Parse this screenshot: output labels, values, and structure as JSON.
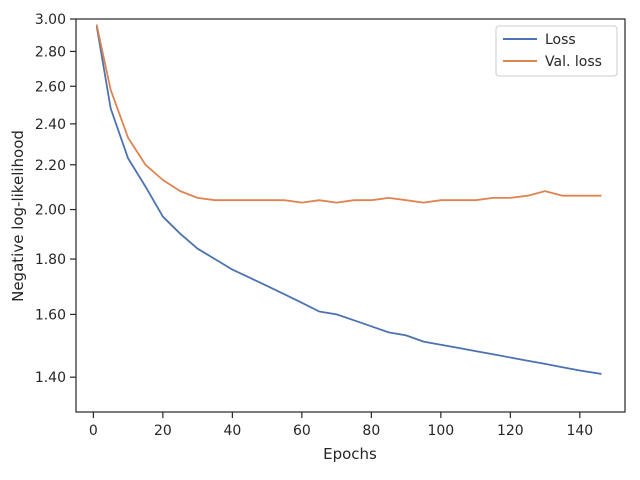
{
  "chart_data": {
    "type": "line",
    "title": "",
    "xlabel": "Epochs",
    "ylabel": "Negative log-likelihood",
    "y_scale": "log",
    "xlim": [
      -5,
      153
    ],
    "ylim": [
      1.3,
      3.0
    ],
    "grid": false,
    "legend_position": "top-right",
    "x_ticks": [
      0,
      20,
      40,
      60,
      80,
      100,
      120,
      140
    ],
    "y_ticks": [
      1.4,
      1.6,
      1.8,
      2.0,
      2.2,
      2.4,
      2.6,
      2.8,
      3.0
    ],
    "x_tick_labels": [
      "0",
      "20",
      "40",
      "60",
      "80",
      "100",
      "120",
      "140"
    ],
    "y_tick_labels": [
      "1.40",
      "1.60",
      "1.80",
      "2.00",
      "2.20",
      "2.40",
      "2.60",
      "2.80",
      "3.00"
    ],
    "x": [
      1,
      5,
      10,
      15,
      20,
      25,
      30,
      35,
      40,
      45,
      50,
      55,
      60,
      65,
      70,
      75,
      80,
      85,
      90,
      95,
      100,
      105,
      110,
      115,
      120,
      125,
      130,
      135,
      140,
      146
    ],
    "series": [
      {
        "name": "Loss",
        "color": "#4c72b0",
        "values": [
          2.95,
          2.48,
          2.23,
          2.1,
          1.97,
          1.9,
          1.84,
          1.8,
          1.76,
          1.73,
          1.7,
          1.67,
          1.64,
          1.61,
          1.6,
          1.58,
          1.56,
          1.54,
          1.53,
          1.51,
          1.5,
          1.49,
          1.48,
          1.47,
          1.46,
          1.45,
          1.44,
          1.43,
          1.42,
          1.41
        ]
      },
      {
        "name": "Val. loss",
        "color": "#dd8452",
        "values": [
          2.96,
          2.58,
          2.33,
          2.2,
          2.13,
          2.08,
          2.05,
          2.04,
          2.04,
          2.04,
          2.04,
          2.04,
          2.03,
          2.04,
          2.03,
          2.04,
          2.04,
          2.05,
          2.04,
          2.03,
          2.04,
          2.04,
          2.04,
          2.05,
          2.05,
          2.06,
          2.08,
          2.06,
          2.06,
          2.06
        ]
      }
    ]
  }
}
